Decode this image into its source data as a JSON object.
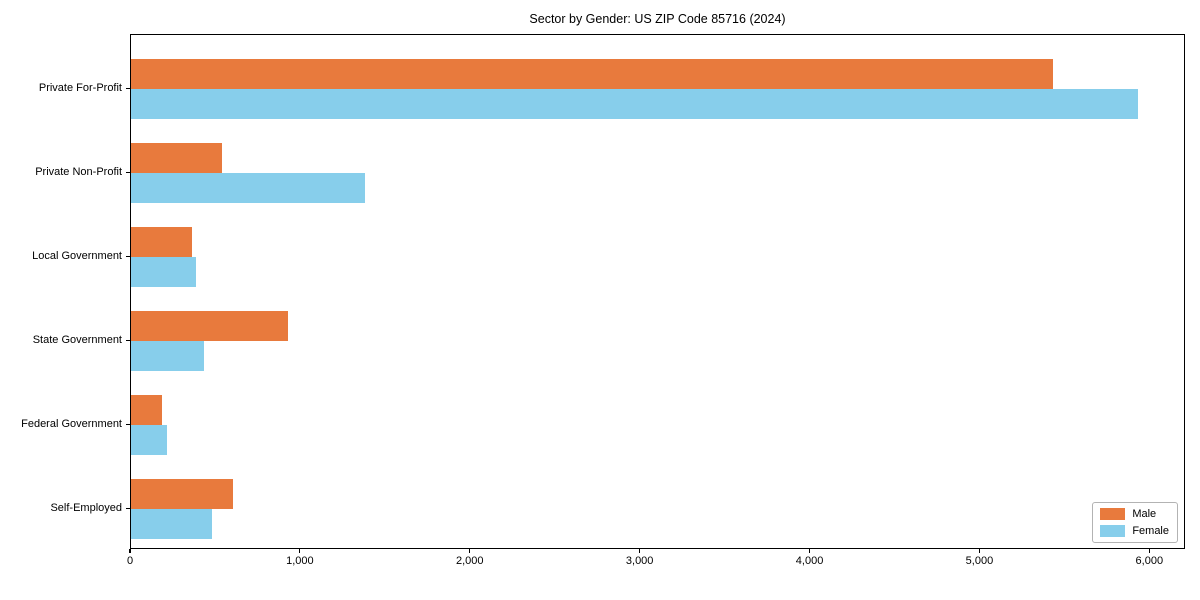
{
  "chart_data": {
    "type": "bar",
    "orientation": "horizontal",
    "title": "Sector by Gender: US ZIP Code 85716 (2024)",
    "categories": [
      "Private For-Profit",
      "Private Non-Profit",
      "Local Government",
      "State Government",
      "Federal Government",
      "Self-Employed"
    ],
    "series": [
      {
        "name": "Male",
        "color": "#e87a3d",
        "values": [
          5425,
          535,
          360,
          925,
          185,
          600
        ]
      },
      {
        "name": "Female",
        "color": "#87ceeb",
        "values": [
          5925,
          1380,
          385,
          430,
          210,
          475
        ]
      }
    ],
    "xlim": [
      0,
      6210
    ],
    "xticks": [
      0,
      1000,
      2000,
      3000,
      4000,
      5000,
      6000
    ],
    "xtick_labels": [
      "0",
      "1,000",
      "2,000",
      "3,000",
      "4,000",
      "5,000",
      "6,000"
    ],
    "xlabel": "",
    "ylabel": "",
    "grid": false,
    "legend_position": "lower right",
    "plot_background": "#ffffff",
    "spine_color": "#000000"
  }
}
